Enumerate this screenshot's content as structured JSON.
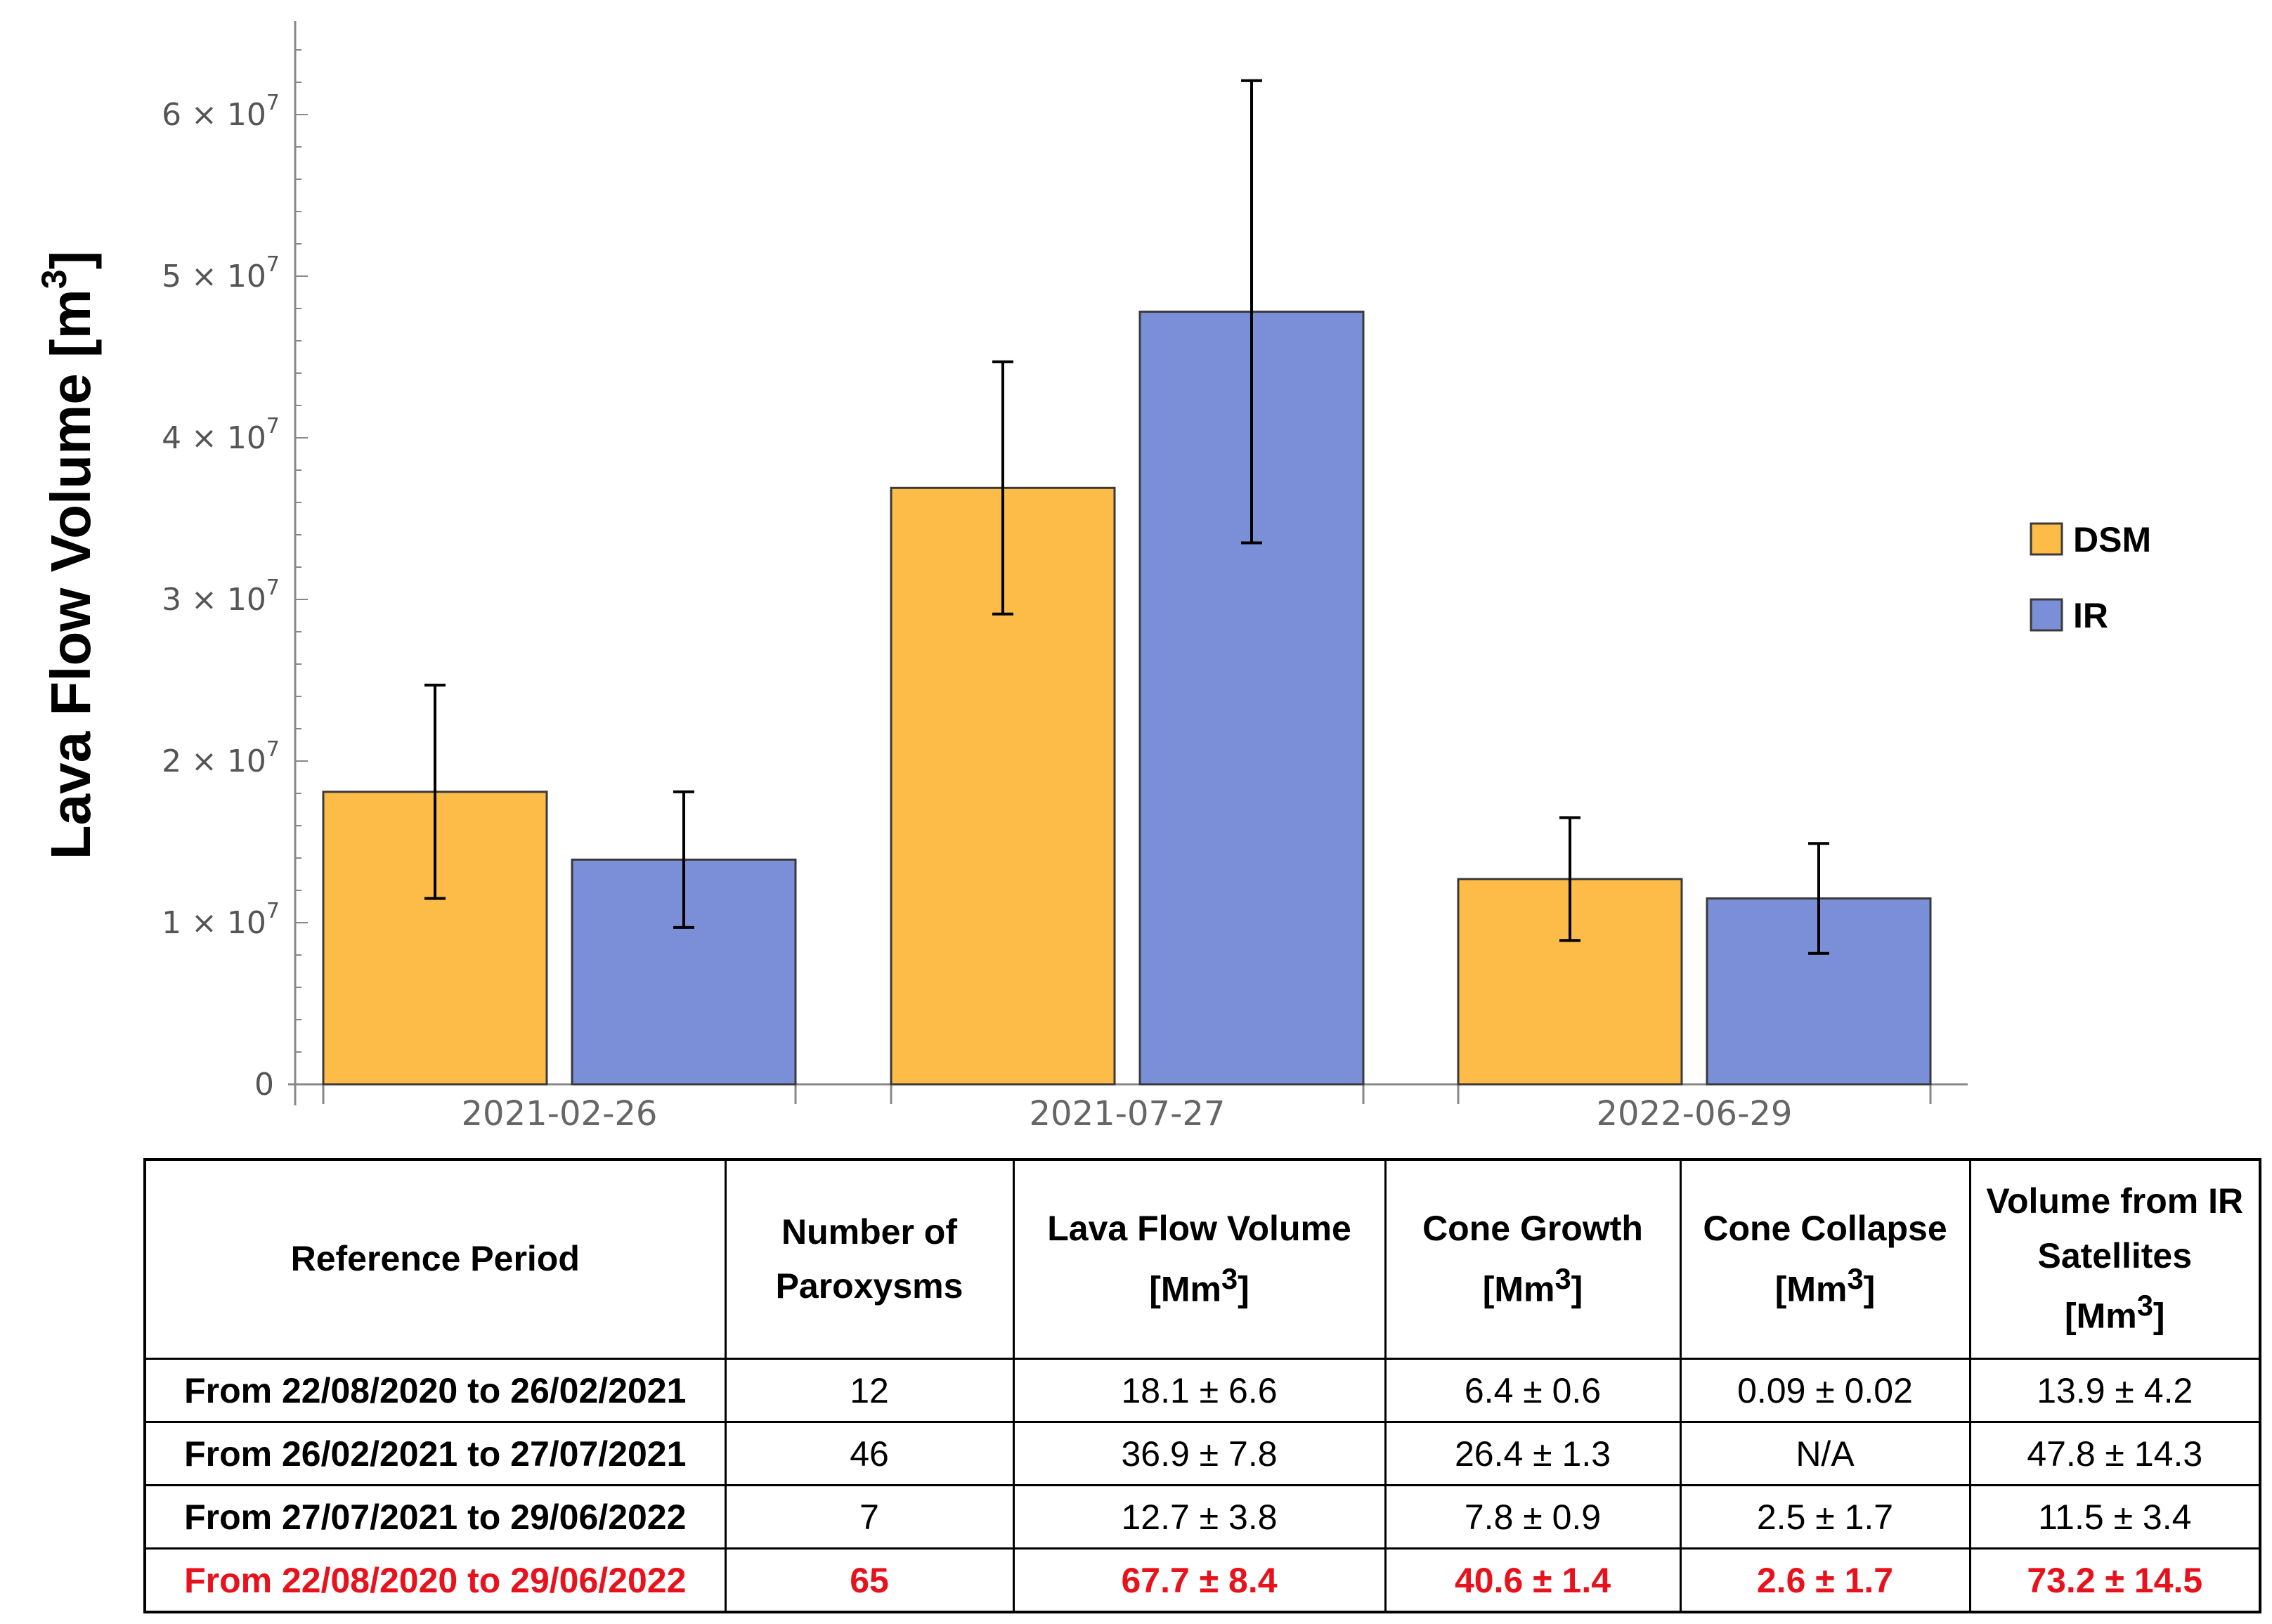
{
  "chart_data": {
    "type": "bar",
    "title": "",
    "xlabel": "",
    "ylabel": "Lava Flow Volume [m",
    "ylabel_sup": "3",
    "ylabel_end": "]",
    "ylim": [
      0,
      64000000
    ],
    "yticks": [
      {
        "value": 0,
        "label": "0",
        "exp": ""
      },
      {
        "value": 10000000,
        "label": "1 × 10",
        "exp": "7"
      },
      {
        "value": 20000000,
        "label": "2 × 10",
        "exp": "7"
      },
      {
        "value": 30000000,
        "label": "3 × 10",
        "exp": "7"
      },
      {
        "value": 40000000,
        "label": "4 × 10",
        "exp": "7"
      },
      {
        "value": 50000000,
        "label": "5 × 10",
        "exp": "7"
      },
      {
        "value": 60000000,
        "label": "6 × 10",
        "exp": "7"
      }
    ],
    "categories": [
      "2021-02-26",
      "2021-07-27",
      "2022-06-29"
    ],
    "series": [
      {
        "name": "DSM",
        "color": "#fdbc47",
        "values": [
          18100000,
          36900000,
          12700000
        ],
        "errors": [
          6600000,
          7800000,
          3800000
        ]
      },
      {
        "name": "IR",
        "color": "#7b8ed8",
        "values": [
          13900000,
          47800000,
          11500000
        ],
        "errors": [
          4200000,
          14300000,
          3400000
        ]
      }
    ],
    "legend": "right"
  },
  "table": {
    "headers": [
      {
        "text": "Reference Period",
        "unit": "",
        "unit_sup": ""
      },
      {
        "text": "Number of Paroxysms",
        "unit": "",
        "unit_sup": ""
      },
      {
        "text": "Lava Flow Volume",
        "unit": "[Mm",
        "unit_sup": "3"
      },
      {
        "text": "Cone Growth",
        "unit": "[Mm",
        "unit_sup": "3"
      },
      {
        "text": "Cone Collapse",
        "unit": "[Mm",
        "unit_sup": "3"
      },
      {
        "text": "Volume from IR Satellites",
        "unit": "[Mm",
        "unit_sup": "3"
      }
    ],
    "rows": [
      [
        "From 22/08/2020 to 26/02/2021",
        "12",
        "18.1 ± 6.6",
        "6.4  ± 0.6",
        "0.09 ± 0.02",
        "13.9 ± 4.2"
      ],
      [
        "From 26/02/2021 to 27/07/2021",
        "46",
        "36.9 ± 7.8",
        "26.4 ± 1.3",
        "N/A",
        "47.8 ± 14.3"
      ],
      [
        "From 27/07/2021 to 29/06/2022",
        "7",
        "12.7 ± 3.8",
        "7.8  ± 0.9",
        "2.5  ±  1.7",
        "11.5 ± 3.4"
      ],
      [
        "From 22/08/2020 to 29/06/2022",
        "65",
        "67.7 ± 8.4",
        "40.6 ± 1.4",
        "2.6 ± 1.7",
        "73.2 ± 14.5"
      ]
    ],
    "total_color": "#e8121c"
  }
}
